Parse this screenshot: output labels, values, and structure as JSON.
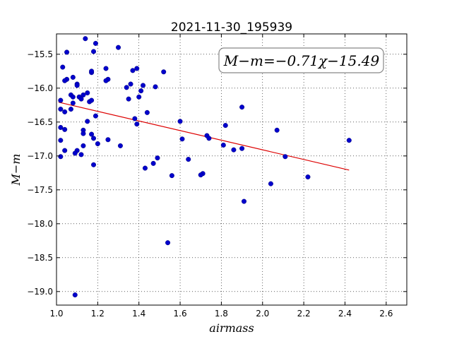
{
  "chart_data": {
    "type": "scatter",
    "title": "2021-11-30_195939",
    "xlabel": "airmass",
    "ylabel": "M−m",
    "xlim": [
      1.0,
      2.7
    ],
    "ylim": [
      -15.2,
      -19.2
    ],
    "y_inverted": true,
    "x_ticks": [
      1.0,
      1.2,
      1.4,
      1.6,
      1.8,
      2.0,
      2.2,
      2.4,
      2.6
    ],
    "x_tick_labels": [
      "1.0",
      "1.2",
      "1.4",
      "1.6",
      "1.8",
      "2.0",
      "2.2",
      "2.4",
      "2.6"
    ],
    "y_ticks": [
      -15.5,
      -16.0,
      -16.5,
      -17.0,
      -17.5,
      -18.0,
      -18.5,
      -19.0
    ],
    "y_tick_labels": [
      "−15.5",
      "−16.0",
      "−16.5",
      "−17.0",
      "−17.5",
      "−18.0",
      "−18.5",
      "−19.0"
    ],
    "grid": true,
    "point_color": "#0000cc",
    "fit_color": "#dd0000",
    "annotation": "M−m=−0.71χ−15.49",
    "fit": {
      "slope": -0.71,
      "intercept": -15.49,
      "x_range": [
        1.01,
        2.42
      ]
    },
    "points": [
      [
        1.14,
        -15.27
      ],
      [
        1.19,
        -15.34
      ],
      [
        1.05,
        -15.47
      ],
      [
        1.3,
        -15.4
      ],
      [
        1.18,
        -15.46
      ],
      [
        1.03,
        -15.69
      ],
      [
        1.17,
        -15.77
      ],
      [
        1.17,
        -15.75
      ],
      [
        1.24,
        -15.71
      ],
      [
        1.39,
        -15.71
      ],
      [
        1.37,
        -15.74
      ],
      [
        1.52,
        -15.76
      ],
      [
        1.08,
        -15.84
      ],
      [
        1.05,
        -15.87
      ],
      [
        1.04,
        -15.89
      ],
      [
        1.25,
        -15.87
      ],
      [
        1.24,
        -15.89
      ],
      [
        1.1,
        -15.94
      ],
      [
        1.1,
        -15.96
      ],
      [
        1.36,
        -15.94
      ],
      [
        1.42,
        -15.96
      ],
      [
        1.48,
        -15.98
      ],
      [
        1.34,
        -15.99
      ],
      [
        1.41,
        -16.04
      ],
      [
        1.15,
        -16.07
      ],
      [
        1.07,
        -16.1
      ],
      [
        1.13,
        -16.1
      ],
      [
        1.08,
        -16.13
      ],
      [
        1.11,
        -16.13
      ],
      [
        1.12,
        -16.16
      ],
      [
        1.4,
        -16.13
      ],
      [
        1.35,
        -16.16
      ],
      [
        1.02,
        -16.18
      ],
      [
        1.08,
        -16.22
      ],
      [
        1.16,
        -16.2
      ],
      [
        1.17,
        -16.18
      ],
      [
        1.07,
        -16.31
      ],
      [
        1.02,
        -16.31
      ],
      [
        1.04,
        -16.35
      ],
      [
        1.44,
        -16.36
      ],
      [
        1.19,
        -16.41
      ],
      [
        1.9,
        -16.28
      ],
      [
        1.38,
        -16.45
      ],
      [
        1.39,
        -16.53
      ],
      [
        1.15,
        -16.49
      ],
      [
        1.6,
        -16.49
      ],
      [
        1.82,
        -16.55
      ],
      [
        1.02,
        -16.58
      ],
      [
        1.04,
        -16.61
      ],
      [
        1.13,
        -16.62
      ],
      [
        1.13,
        -16.67
      ],
      [
        1.17,
        -16.68
      ],
      [
        2.07,
        -16.62
      ],
      [
        1.73,
        -16.7
      ],
      [
        1.74,
        -16.74
      ],
      [
        1.02,
        -16.77
      ],
      [
        1.18,
        -16.74
      ],
      [
        1.25,
        -16.76
      ],
      [
        1.61,
        -16.75
      ],
      [
        2.42,
        -16.77
      ],
      [
        1.2,
        -16.82
      ],
      [
        1.13,
        -16.85
      ],
      [
        1.31,
        -16.85
      ],
      [
        1.81,
        -16.84
      ],
      [
        1.86,
        -16.91
      ],
      [
        1.9,
        -16.89
      ],
      [
        1.04,
        -16.92
      ],
      [
        1.1,
        -16.92
      ],
      [
        1.09,
        -16.96
      ],
      [
        1.12,
        -16.98
      ],
      [
        1.02,
        -17.01
      ],
      [
        2.11,
        -17.01
      ],
      [
        1.49,
        -17.03
      ],
      [
        1.64,
        -17.05
      ],
      [
        1.47,
        -17.11
      ],
      [
        1.18,
        -17.13
      ],
      [
        1.43,
        -17.18
      ],
      [
        1.71,
        -17.26
      ],
      [
        1.7,
        -17.28
      ],
      [
        1.56,
        -17.29
      ],
      [
        2.22,
        -17.31
      ],
      [
        2.04,
        -17.41
      ],
      [
        1.91,
        -17.67
      ],
      [
        1.54,
        -18.28
      ],
      [
        1.09,
        -19.05
      ]
    ]
  }
}
